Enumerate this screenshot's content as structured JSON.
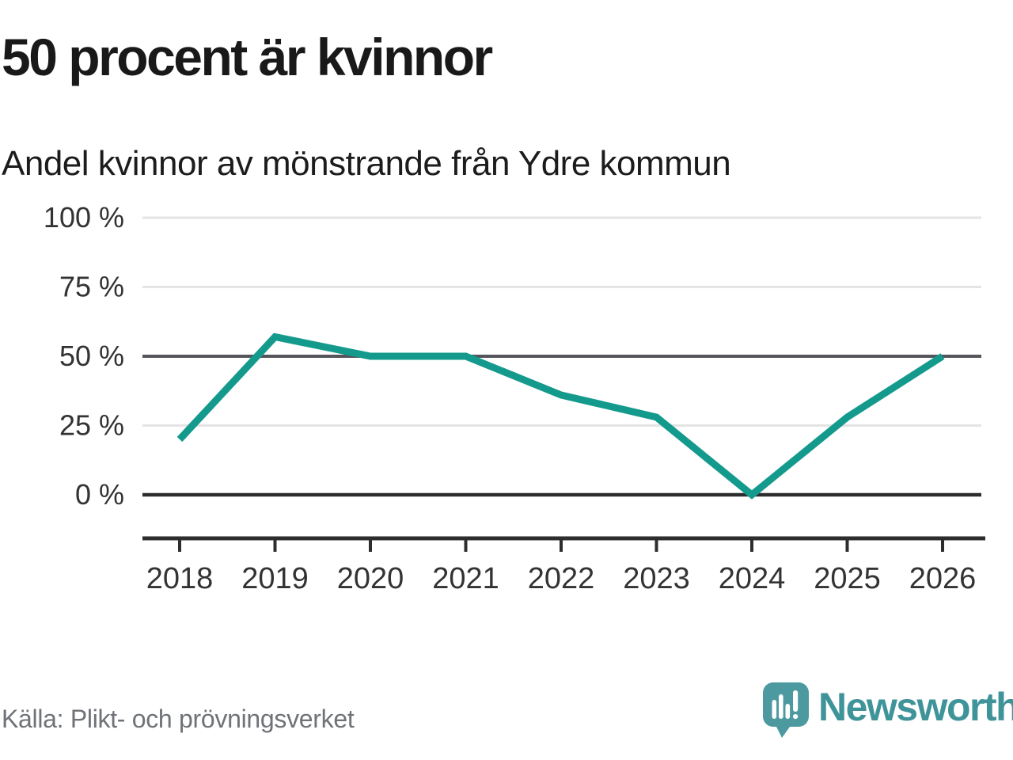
{
  "header": {
    "title": "50 procent är kvinnor",
    "subtitle": "Andel kvinnor av mönstrande från Ydre kommun"
  },
  "footer": {
    "source": "Källa: Plikt- och prövningsverket",
    "brand": "Newsworthy"
  },
  "chart_data": {
    "type": "line",
    "title": "50 procent är kvinnor",
    "subtitle": "Andel kvinnor av mönstrande från Ydre kommun",
    "categories": [
      "2018",
      "2019",
      "2020",
      "2021",
      "2022",
      "2023",
      "2024",
      "2025",
      "2026"
    ],
    "series": [
      {
        "name": "Andel kvinnor av mönstrande, Ydre kommun",
        "values": [
          20,
          57,
          50,
          50,
          36,
          28,
          0,
          28,
          50
        ]
      }
    ],
    "unit": "%",
    "xlabel": "",
    "ylabel": "",
    "ylim": [
      0,
      100
    ],
    "yticks": [
      0,
      25,
      50,
      75,
      100
    ],
    "ytick_labels": [
      "0 %",
      "25 %",
      "50 %",
      "75 %",
      "100 %"
    ],
    "emphasized_gridline_value": 50,
    "baseline_value": 0,
    "grid": "horizontal-only",
    "legend_position": "none",
    "colors": {
      "line": "#149a8d",
      "gridline_light": "#e4e4e4",
      "gridline_emphasis": "#54565c",
      "baseline": "#2d2d2d",
      "axis": "#2d2d2d",
      "tick_label": "#333333",
      "title": "#191919",
      "source_text": "#6f7277",
      "brand": "#3f949a",
      "logo_mark": "#4c9aa0"
    }
  }
}
